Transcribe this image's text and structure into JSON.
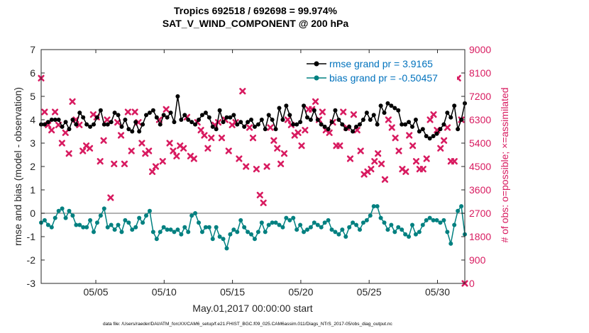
{
  "chart_data": {
    "type": "line",
    "title_line1": "Tropics 692518 / 692698 = 99.974%",
    "title_line2": "SAT_V_WIND_COMPONENT @ 200 hPa",
    "xlabel": "May.01,2017 00:00:00 start",
    "ylabel_left": "rmse and bias (model - observation)",
    "ylabel_right": "# of obs: o=possible; ×=assimilated",
    "footer": "data file: /Users/raeder/DAI/ATM_forcXX/CAM6_setup/f.e21.FHIST_BGC.f09_025.CAM6assim.011/Diags_NTrS_2017-05/obs_diag_output.nc",
    "x_ticks": [
      "05/05",
      "05/10",
      "05/15",
      "05/20",
      "05/25",
      "05/30"
    ],
    "x_tick_days": [
      5,
      10,
      15,
      20,
      25,
      30
    ],
    "xlim": [
      1,
      32
    ],
    "ylim_left": [
      -3,
      7
    ],
    "y_ticks_left": [
      "-3",
      "-2",
      "-1",
      "0",
      "1",
      "2",
      "3",
      "4",
      "5",
      "6",
      "7"
    ],
    "ylim_right": [
      0,
      9000
    ],
    "y_ticks_right": [
      "0",
      "900",
      "1800",
      "2700",
      "3600",
      "4500",
      "5400",
      "6300",
      "7200",
      "8100",
      "9000"
    ],
    "zero_line": 0,
    "colors": {
      "rmse": "#000000",
      "bias": "#008080",
      "obs": "#d81b60",
      "legend_text": "#0072bd",
      "zero_line": "#999999"
    },
    "series": [
      {
        "name": "rmse grand pr = 3.9165",
        "key": "rmse",
        "values": [
          3.8,
          3.8,
          3.9,
          4.0,
          4.0,
          4.0,
          3.7,
          3.9,
          3.6,
          4.0,
          3.8,
          4.3,
          4.1,
          3.8,
          3.7,
          3.8,
          4.1,
          4.4,
          3.8,
          3.8,
          3.9,
          4.3,
          4.2,
          3.7,
          4.0,
          3.6,
          3.5,
          3.9,
          3.5,
          3.8,
          4.2,
          4.3,
          4.4,
          4.1,
          3.8,
          4.2,
          4.1,
          4.3,
          3.9,
          5.0,
          4.0,
          4.2,
          4.0,
          3.9,
          3.8,
          4.0,
          4.2,
          4.3,
          4.1,
          3.7,
          3.6,
          4.4,
          3.9,
          4.1,
          4.1,
          4.2,
          3.8,
          3.9,
          3.7,
          3.9,
          4.0,
          3.7,
          3.8,
          4.0,
          3.6,
          4.2,
          4.0,
          3.6,
          4.5,
          4.0,
          4.6,
          4.2,
          3.8,
          3.8,
          3.9,
          4.6,
          4.1,
          4.0,
          4.4,
          4.0,
          3.8,
          3.7,
          3.6,
          3.9,
          4.4,
          4.0,
          3.8,
          3.6,
          3.7,
          3.5,
          3.7,
          3.8,
          4.0,
          4.3,
          4.0,
          4.2,
          3.8,
          4.6,
          4.3,
          4.7,
          4.6,
          4.5,
          4.4,
          3.8,
          3.8,
          3.9,
          3.7,
          4.0,
          3.5,
          3.6,
          3.3,
          3.2,
          3.3,
          3.4,
          3.6,
          3.8,
          4.3,
          4.1,
          4.6,
          3.6,
          4.0,
          4.7
        ],
        "marker": "circle"
      },
      {
        "name": "bias grand pr = -0.50457",
        "key": "bias",
        "values": [
          -0.4,
          -0.3,
          -0.5,
          -0.6,
          -0.2,
          0.1,
          0.2,
          -0.2,
          0.1,
          -0.1,
          -0.5,
          -0.5,
          -0.6,
          -0.6,
          -0.3,
          -0.8,
          -0.4,
          -0.1,
          0.2,
          -0.6,
          -0.5,
          -0.7,
          -0.5,
          -0.8,
          -0.3,
          -0.4,
          -0.7,
          -0.6,
          -0.2,
          -0.4,
          -0.1,
          0.1,
          -0.8,
          -1.1,
          -0.8,
          -0.6,
          -0.7,
          -0.7,
          -0.8,
          -0.7,
          -0.9,
          -0.6,
          -0.8,
          -0.1,
          0.0,
          -0.4,
          -0.8,
          -0.6,
          -0.6,
          -1.1,
          -0.6,
          -1.0,
          -1.1,
          -1.5,
          -0.9,
          -0.7,
          -0.8,
          -0.3,
          -0.6,
          -0.8,
          -0.9,
          -1.1,
          -0.8,
          -0.4,
          -0.8,
          -0.5,
          -0.4,
          -0.4,
          -0.5,
          -0.6,
          -0.2,
          -0.3,
          -0.2,
          -0.7,
          -0.5,
          -0.8,
          -0.7,
          -0.6,
          -0.4,
          -0.5,
          -0.6,
          -0.4,
          -0.3,
          -0.7,
          -0.8,
          -0.9,
          -0.7,
          -1.0,
          -0.6,
          -0.4,
          -0.5,
          -0.7,
          -0.4,
          -0.3,
          -0.1,
          0.3,
          0.3,
          -0.2,
          -0.4,
          -0.7,
          -0.5,
          -0.8,
          -0.6,
          -0.7,
          -0.9,
          -1.0,
          -0.5,
          -0.9,
          -0.8,
          -0.5,
          -0.3,
          -0.2,
          -0.3,
          -0.3,
          -0.4,
          -0.3,
          -0.8,
          -1.3,
          -0.5,
          0.1,
          0.3,
          -0.9
        ],
        "marker": "circle"
      },
      {
        "name": "# assimilated",
        "key": "obs",
        "axis": "right",
        "values": [
          7900,
          6600,
          6100,
          5900,
          6600,
          6100,
          5400,
          5800,
          5000,
          7000,
          6300,
          6100,
          5100,
          5300,
          5200,
          6500,
          6400,
          4700,
          5500,
          6300,
          3300,
          4600,
          6200,
          5700,
          4600,
          6600,
          5100,
          6600,
          6200,
          5400,
          5000,
          5100,
          4300,
          4500,
          6300,
          4700,
          6700,
          5400,
          5100,
          4900,
          5300,
          5200,
          6400,
          4900,
          4800,
          6200,
          5900,
          5700,
          5200,
          5600,
          6100,
          6200,
          5600,
          6300,
          5100,
          6100,
          6200,
          4800,
          7400,
          4500,
          6000,
          5600,
          4400,
          3400,
          3100,
          4500,
          6000,
          5500,
          5200,
          4600,
          5000,
          6300,
          6100,
          5700,
          5800,
          5300,
          5900,
          6700,
          6700,
          7000,
          6300,
          6600,
          5900,
          5800,
          6200,
          5300,
          5300,
          6600,
          6000,
          4800,
          6500,
          5900,
          5100,
          4200,
          4300,
          4400,
          4700,
          5000,
          4600,
          4000,
          6300,
          6000,
          5600,
          5100,
          4400,
          4300,
          5700,
          5300,
          4700,
          4400,
          4400,
          4800,
          6300,
          6500,
          5900,
          5200,
          5500,
          6000,
          4700,
          4700,
          7900,
          6300,
          0
        ],
        "marker": "x"
      }
    ]
  }
}
